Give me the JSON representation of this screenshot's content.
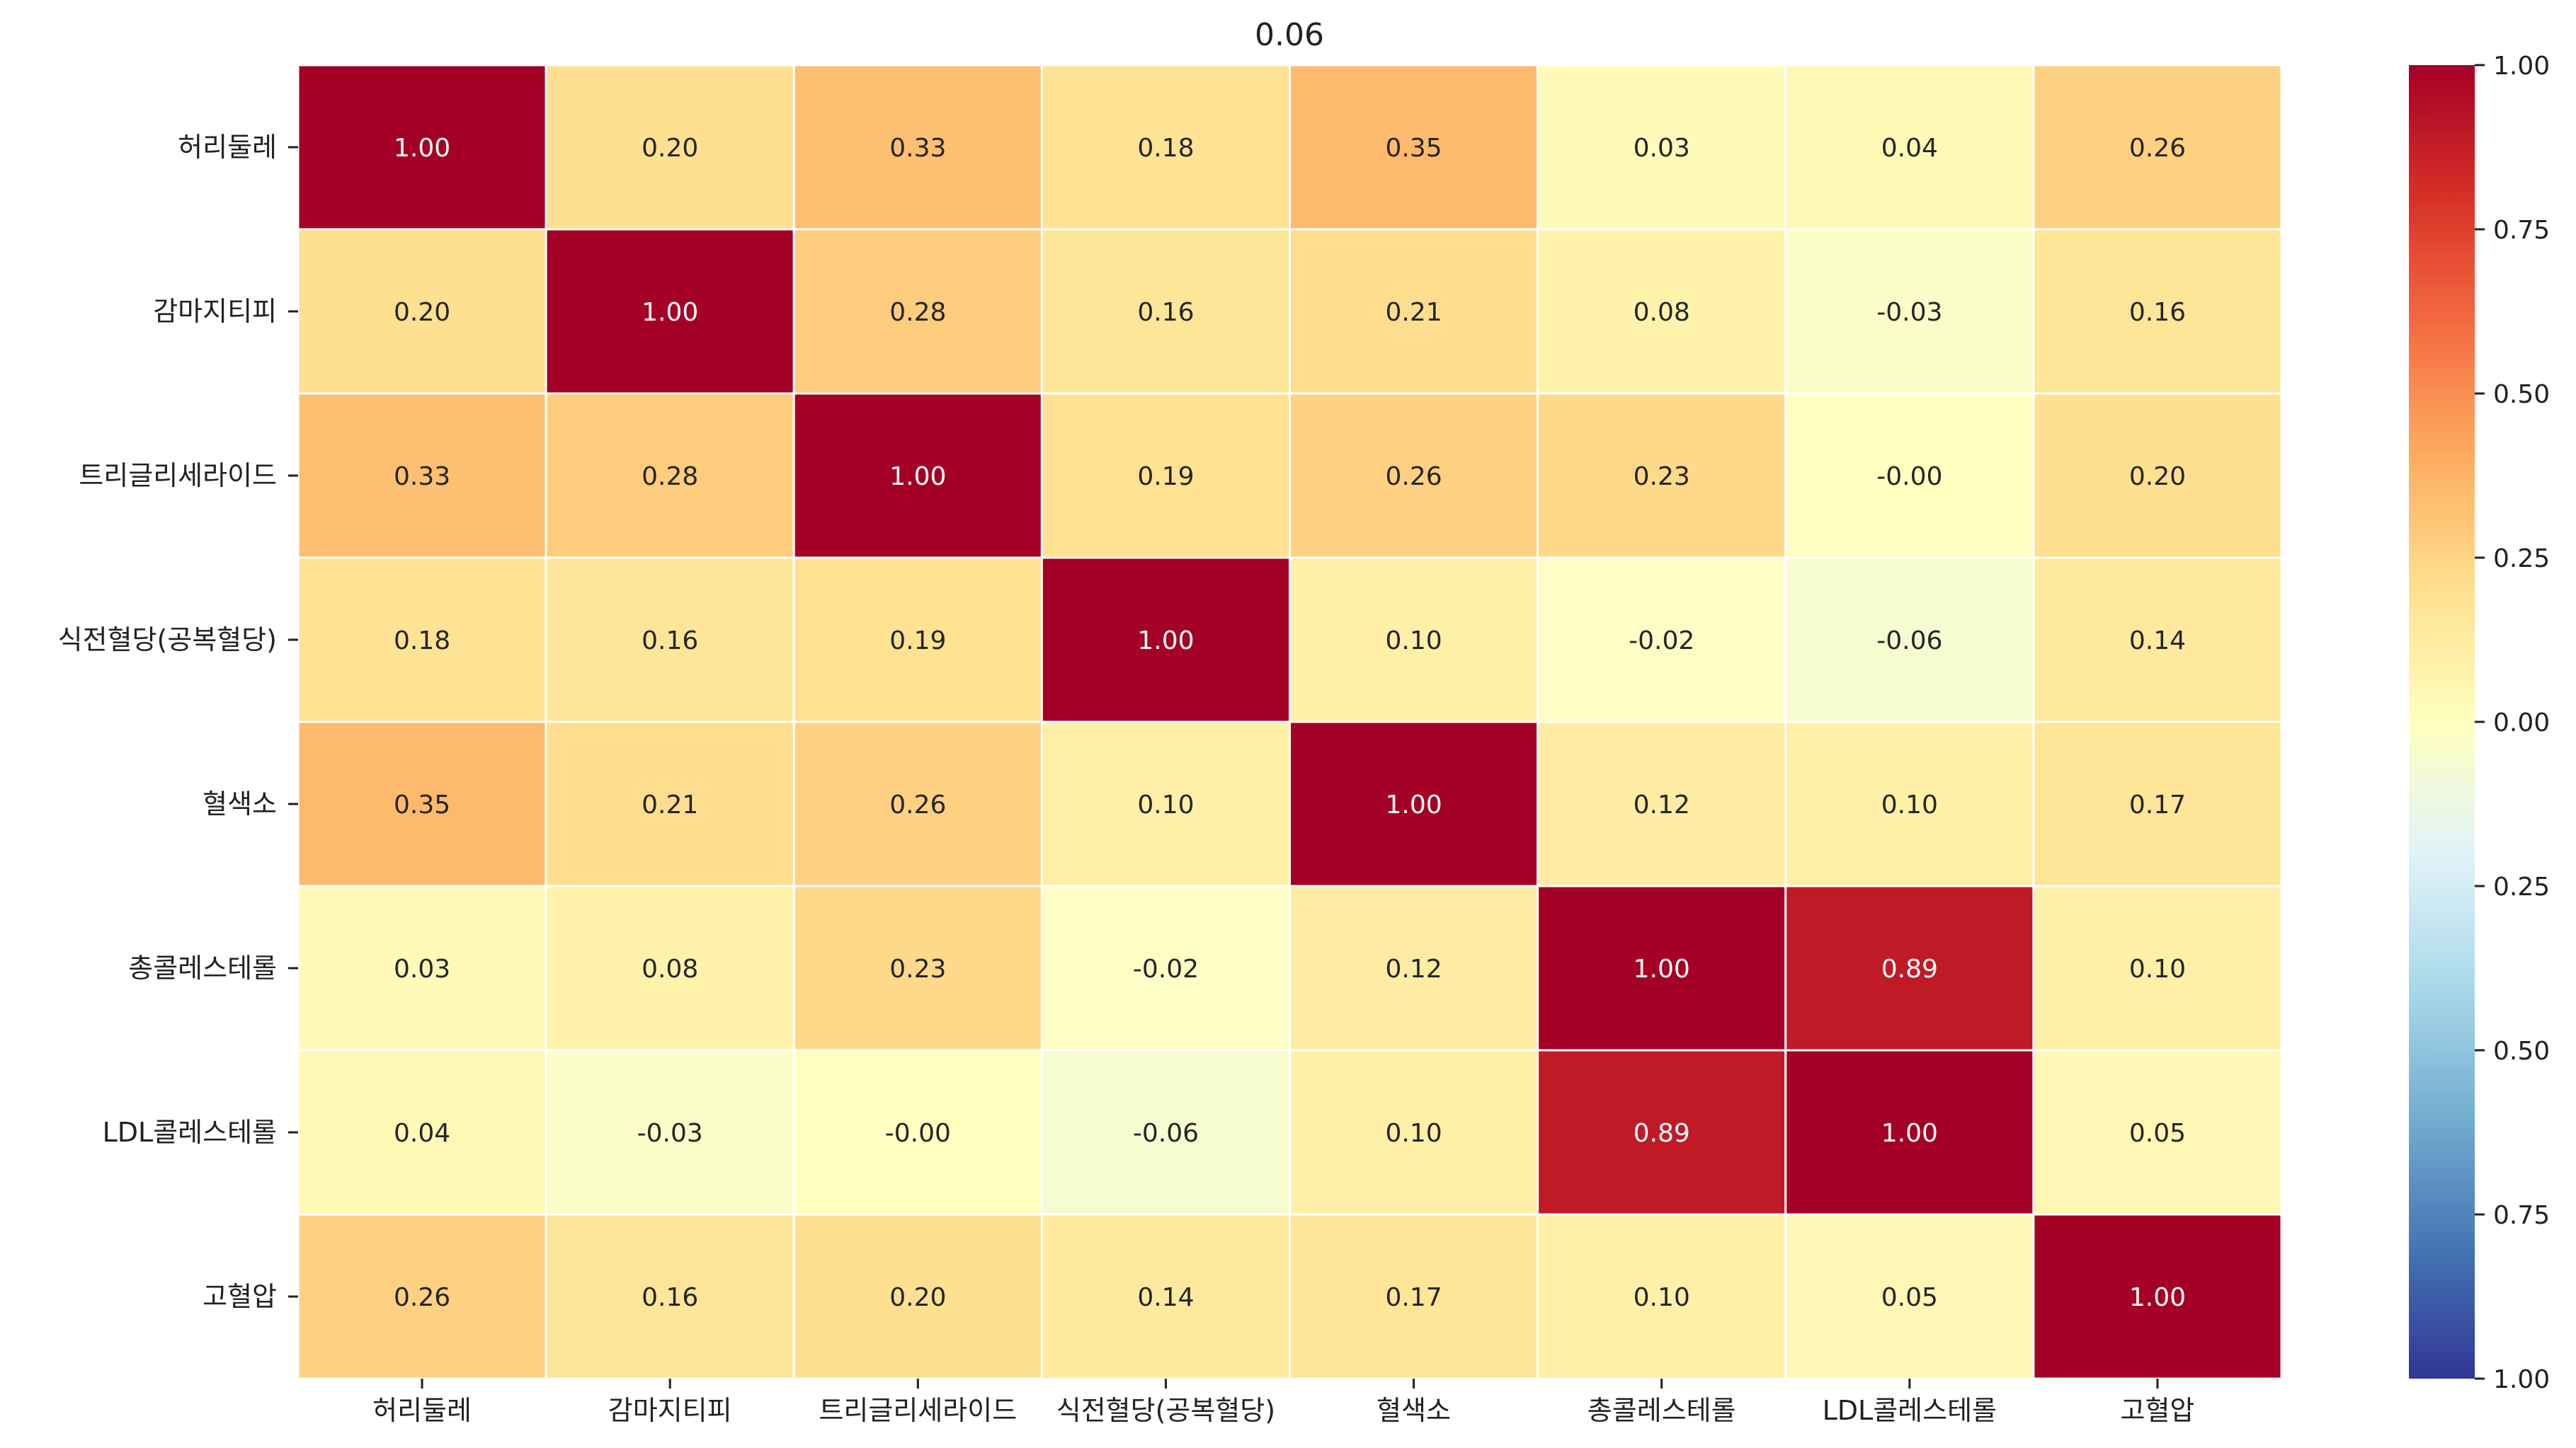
{
  "chart_data": {
    "type": "heatmap",
    "title": "0.06",
    "xlabel": "",
    "ylabel": "",
    "row_labels": [
      "허리둘레",
      "감마지티피",
      "트리글리세라이드",
      "식전혈당(공복혈당)",
      "혈색소",
      "총콜레스테롤",
      "LDL콜레스테롤",
      "고혈압"
    ],
    "col_labels": [
      "허리둘레",
      "감마지티피",
      "트리글리세라이드",
      "식전혈당(공복혈당)",
      "혈색소",
      "총콜레스테롤",
      "LDL콜레스테롤",
      "고혈압"
    ],
    "values": [
      [
        1.0,
        0.2,
        0.33,
        0.18,
        0.35,
        0.03,
        0.04,
        0.26
      ],
      [
        0.2,
        1.0,
        0.28,
        0.16,
        0.21,
        0.08,
        -0.03,
        0.16
      ],
      [
        0.33,
        0.28,
        1.0,
        0.19,
        0.26,
        0.23,
        -0.0,
        0.2
      ],
      [
        0.18,
        0.16,
        0.19,
        1.0,
        0.1,
        -0.02,
        -0.06,
        0.14
      ],
      [
        0.35,
        0.21,
        0.26,
        0.1,
        1.0,
        0.12,
        0.1,
        0.17
      ],
      [
        0.03,
        0.08,
        0.23,
        -0.02,
        0.12,
        1.0,
        0.89,
        0.1
      ],
      [
        0.04,
        -0.03,
        -0.0,
        -0.06,
        0.1,
        0.89,
        1.0,
        0.05
      ],
      [
        0.26,
        0.16,
        0.2,
        0.14,
        0.17,
        0.1,
        0.05,
        1.0
      ]
    ],
    "value_labels": [
      [
        "1.00",
        "0.20",
        "0.33",
        "0.18",
        "0.35",
        "0.03",
        "0.04",
        "0.26"
      ],
      [
        "0.20",
        "1.00",
        "0.28",
        "0.16",
        "0.21",
        "0.08",
        "-0.03",
        "0.16"
      ],
      [
        "0.33",
        "0.28",
        "1.00",
        "0.19",
        "0.26",
        "0.23",
        "-0.00",
        "0.20"
      ],
      [
        "0.18",
        "0.16",
        "0.19",
        "1.00",
        "0.10",
        "-0.02",
        "-0.06",
        "0.14"
      ],
      [
        "0.35",
        "0.21",
        "0.26",
        "0.10",
        "1.00",
        "0.12",
        "0.10",
        "0.17"
      ],
      [
        "0.03",
        "0.08",
        "0.23",
        "-0.02",
        "0.12",
        "1.00",
        "0.89",
        "0.10"
      ],
      [
        "0.04",
        "-0.03",
        "-0.00",
        "-0.06",
        "0.10",
        "0.89",
        "1.00",
        "0.05"
      ],
      [
        "0.26",
        "0.16",
        "0.20",
        "0.14",
        "0.17",
        "0.10",
        "0.05",
        "1.00"
      ]
    ],
    "colormap": "RdYlBu_r",
    "vmin": -1.0,
    "vmax": 1.0,
    "colorbar_ticks": [
      1.0,
      0.75,
      0.5,
      0.25,
      0.0,
      -0.25,
      -0.5,
      -0.75,
      -1.0
    ],
    "colorbar_tick_labels": [
      "1.00",
      "0.75",
      "0.50",
      "0.25",
      "0.00",
      "\u001f0.25",
      "\u001f0.50",
      "\u001f0.75",
      "\u001f1.00"
    ],
    "grid_line_color": "#ffffff"
  }
}
